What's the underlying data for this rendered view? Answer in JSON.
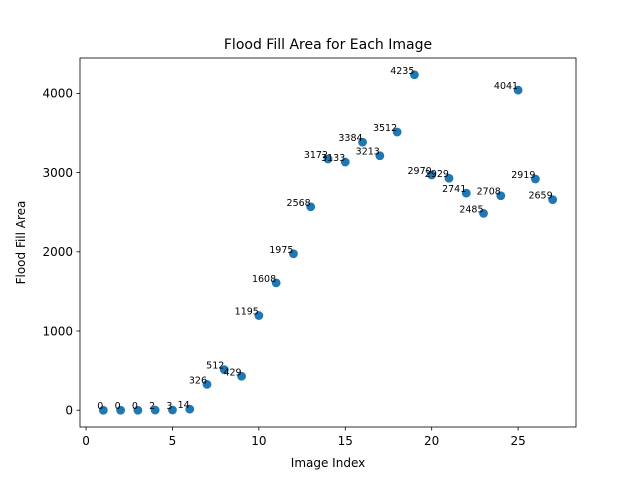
{
  "chart_data": {
    "type": "scatter",
    "title": "Flood Fill Area for Each Image",
    "xlabel": "Image Index",
    "ylabel": "Flood Fill Area",
    "xlim": [
      -0.35,
      28.35
    ],
    "ylim": [
      -211.75,
      4446.75
    ],
    "xticks": [
      0,
      5,
      10,
      15,
      20,
      25
    ],
    "yticks": [
      0,
      1000,
      2000,
      3000,
      4000
    ],
    "grid": false,
    "marker_color": "#1f77b4",
    "x": [
      1,
      2,
      3,
      4,
      5,
      6,
      7,
      8,
      9,
      10,
      11,
      12,
      13,
      14,
      15,
      16,
      17,
      18,
      19,
      20,
      21,
      22,
      23,
      24,
      25,
      26,
      27
    ],
    "y": [
      0,
      0,
      0,
      2,
      3,
      14,
      326,
      512,
      429,
      1195,
      1608,
      1975,
      2568,
      3172,
      3133,
      3384,
      3213,
      3512,
      4235,
      2970,
      2929,
      2741,
      2485,
      2708,
      4041,
      2919,
      2659
    ],
    "point_labels": [
      "0",
      "0",
      "0",
      "2",
      "3",
      "14",
      "326",
      "512",
      "429",
      "1195",
      "1608",
      "1975",
      "2568",
      "3172",
      "3133",
      "3384",
      "3213",
      "3512",
      "4235",
      "2970",
      "2929",
      "2741",
      "2485",
      "2708",
      "4041",
      "2919",
      "2659"
    ]
  }
}
